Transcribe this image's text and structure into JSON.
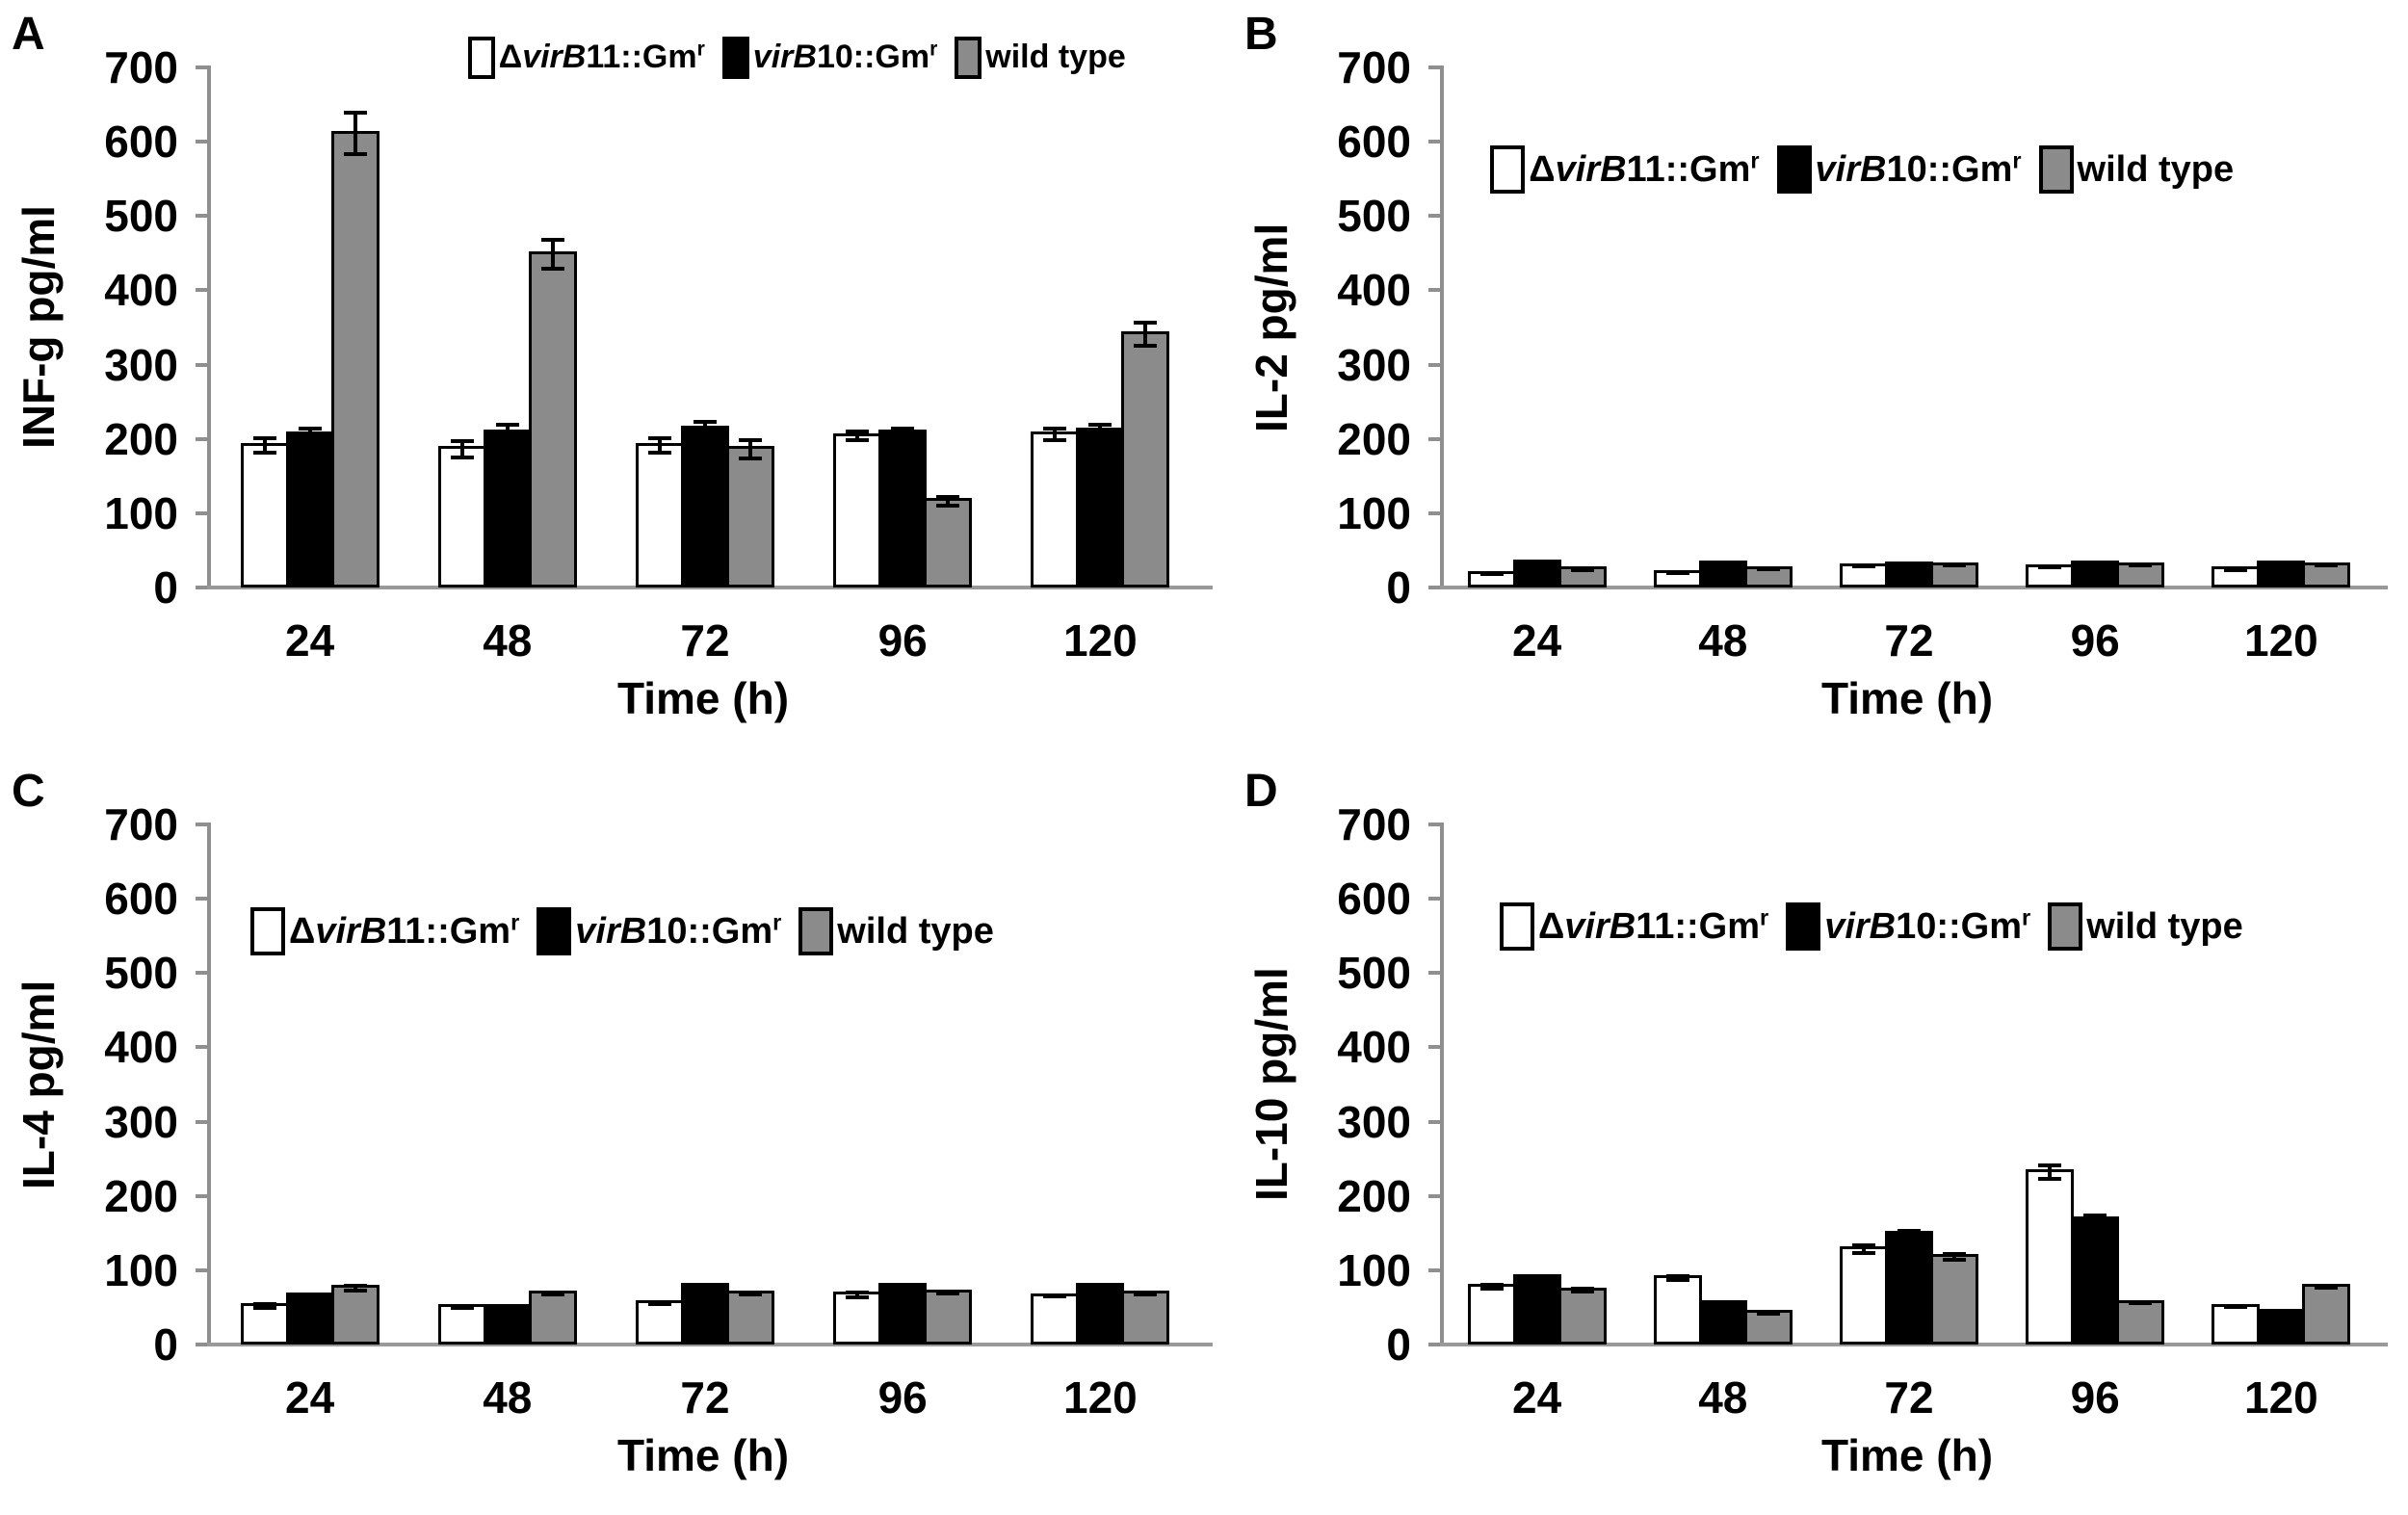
{
  "figure": {
    "background": "#ffffff",
    "panels": 4
  },
  "colors": {
    "bar_white": "#ffffff",
    "bar_black": "#000000",
    "bar_gray": "#8b8b8b",
    "bar_border": "#000000",
    "axis": "#8f8f8f",
    "error_bar": "#000000"
  },
  "chart_data": [
    {
      "type": "bar",
      "panel": "A",
      "ylabel": "INF-g pg/ml",
      "xlabel": "Time (h)",
      "ylim": [
        0,
        700
      ],
      "yticks": [
        700,
        600,
        500,
        400,
        300,
        200,
        100,
        0
      ],
      "categories": [
        "24",
        "48",
        "72",
        "96",
        "120"
      ],
      "grid": false,
      "legend_position": {
        "left_pct": 26,
        "top_pct": -6
      },
      "legend_size": "small",
      "series": [
        {
          "name": "ΔvirB11::Gmr",
          "swatch": "#ffffff",
          "label_segments": [
            {
              "text": "Δ"
            },
            {
              "text": "virB",
              "italic": true
            },
            {
              "text": "11::Gm"
            },
            {
              "text": "r",
              "sup": true
            }
          ],
          "values": [
            195,
            190,
            195,
            208,
            210
          ],
          "errors": [
            12,
            14,
            12,
            8,
            10
          ]
        },
        {
          "name": "virB10::Gmr",
          "swatch": "#000000",
          "label_segments": [
            {
              "text": "virB",
              "italic": true
            },
            {
              "text": "10::Gm"
            },
            {
              "text": "r",
              "sup": true
            }
          ],
          "values": [
            210,
            213,
            218,
            212,
            215
          ],
          "errors": [
            10,
            12,
            12,
            8,
            10
          ]
        },
        {
          "name": "wild type",
          "swatch": "#8b8b8b",
          "label_segments": [
            {
              "text": "wild type"
            }
          ],
          "values": [
            615,
            452,
            190,
            120,
            345
          ],
          "errors": [
            30,
            22,
            15,
            8,
            18
          ]
        }
      ]
    },
    {
      "type": "bar",
      "panel": "B",
      "ylabel": "IL-2 pg/ml",
      "xlabel": "Time (h)",
      "ylim": [
        0,
        700
      ],
      "yticks": [
        700,
        600,
        500,
        400,
        300,
        200,
        100,
        0
      ],
      "categories": [
        "24",
        "48",
        "72",
        "96",
        "120"
      ],
      "grid": false,
      "legend_position": {
        "left_pct": 5,
        "top_pct": 15
      },
      "legend_size": "normal",
      "series": [
        {
          "name": "ΔvirB11::Gmr",
          "swatch": "#ffffff",
          "label_segments": [
            {
              "text": "Δ"
            },
            {
              "text": "virB",
              "italic": true
            },
            {
              "text": "11::Gm"
            },
            {
              "text": "r",
              "sup": true
            }
          ],
          "values": [
            22,
            24,
            33,
            31,
            28
          ],
          "errors": [
            3,
            3,
            3,
            3,
            3
          ]
        },
        {
          "name": "virB10::Gmr",
          "swatch": "#000000",
          "label_segments": [
            {
              "text": "virB",
              "italic": true
            },
            {
              "text": "10::Gm"
            },
            {
              "text": "r",
              "sup": true
            }
          ],
          "values": [
            38,
            36,
            35,
            36,
            36
          ],
          "errors": [
            3,
            3,
            3,
            3,
            3
          ]
        },
        {
          "name": "wild type",
          "swatch": "#8b8b8b",
          "label_segments": [
            {
              "text": "wild type"
            }
          ],
          "values": [
            28,
            29,
            34,
            34,
            34
          ],
          "errors": [
            2,
            2,
            2,
            2,
            2
          ]
        }
      ]
    },
    {
      "type": "bar",
      "panel": "C",
      "ylabel": "IL-4 pg/ml",
      "xlabel": "Time (h)",
      "ylim": [
        0,
        700
      ],
      "yticks": [
        700,
        600,
        500,
        400,
        300,
        200,
        100,
        0
      ],
      "categories": [
        "24",
        "48",
        "72",
        "96",
        "120"
      ],
      "grid": false,
      "legend_position": {
        "left_pct": 4,
        "top_pct": 16
      },
      "legend_size": "normal",
      "series": [
        {
          "name": "ΔvirB11::Gmr",
          "swatch": "#ffffff",
          "label_segments": [
            {
              "text": "Δ"
            },
            {
              "text": "virB",
              "italic": true
            },
            {
              "text": "11::Gm"
            },
            {
              "text": "r",
              "sup": true
            }
          ],
          "values": [
            56,
            54,
            60,
            71,
            69
          ],
          "errors": [
            5,
            3,
            4,
            6,
            3
          ]
        },
        {
          "name": "virB10::Gmr",
          "swatch": "#000000",
          "label_segments": [
            {
              "text": "virB",
              "italic": true
            },
            {
              "text": "10::Gm"
            },
            {
              "text": "r",
              "sup": true
            }
          ],
          "values": [
            70,
            54,
            83,
            83,
            83
          ],
          "errors": [
            3,
            2,
            3,
            2,
            2
          ]
        },
        {
          "name": "wild type",
          "swatch": "#8b8b8b",
          "label_segments": [
            {
              "text": "wild type"
            }
          ],
          "values": [
            80,
            72,
            72,
            74,
            72
          ],
          "errors": [
            6,
            3,
            3,
            4,
            3
          ]
        }
      ]
    },
    {
      "type": "bar",
      "panel": "D",
      "ylabel": "IL-10 pg/ml",
      "xlabel": "Time (h)",
      "ylim": [
        0,
        700
      ],
      "yticks": [
        700,
        600,
        500,
        400,
        300,
        200,
        100,
        0
      ],
      "categories": [
        "24",
        "48",
        "72",
        "96",
        "120"
      ],
      "grid": false,
      "legend_position": {
        "left_pct": 6,
        "top_pct": 15
      },
      "legend_size": "normal",
      "series": [
        {
          "name": "ΔvirB11::Gmr",
          "swatch": "#ffffff",
          "label_segments": [
            {
              "text": "Δ"
            },
            {
              "text": "virB",
              "italic": true
            },
            {
              "text": "11::Gm"
            },
            {
              "text": "r",
              "sup": true
            }
          ],
          "values": [
            82,
            93,
            132,
            236,
            55
          ],
          "errors": [
            5,
            5,
            8,
            12,
            3
          ]
        },
        {
          "name": "virB10::Gmr",
          "swatch": "#000000",
          "label_segments": [
            {
              "text": "virB",
              "italic": true
            },
            {
              "text": "10::Gm"
            },
            {
              "text": "r",
              "sup": true
            }
          ],
          "values": [
            95,
            60,
            153,
            172,
            48
          ],
          "errors": [
            4,
            3,
            7,
            8,
            4
          ]
        },
        {
          "name": "wild type",
          "swatch": "#8b8b8b",
          "label_segments": [
            {
              "text": "wild type"
            }
          ],
          "values": [
            77,
            47,
            122,
            60,
            82
          ],
          "errors": [
            5,
            4,
            6,
            3,
            4
          ]
        }
      ]
    }
  ]
}
